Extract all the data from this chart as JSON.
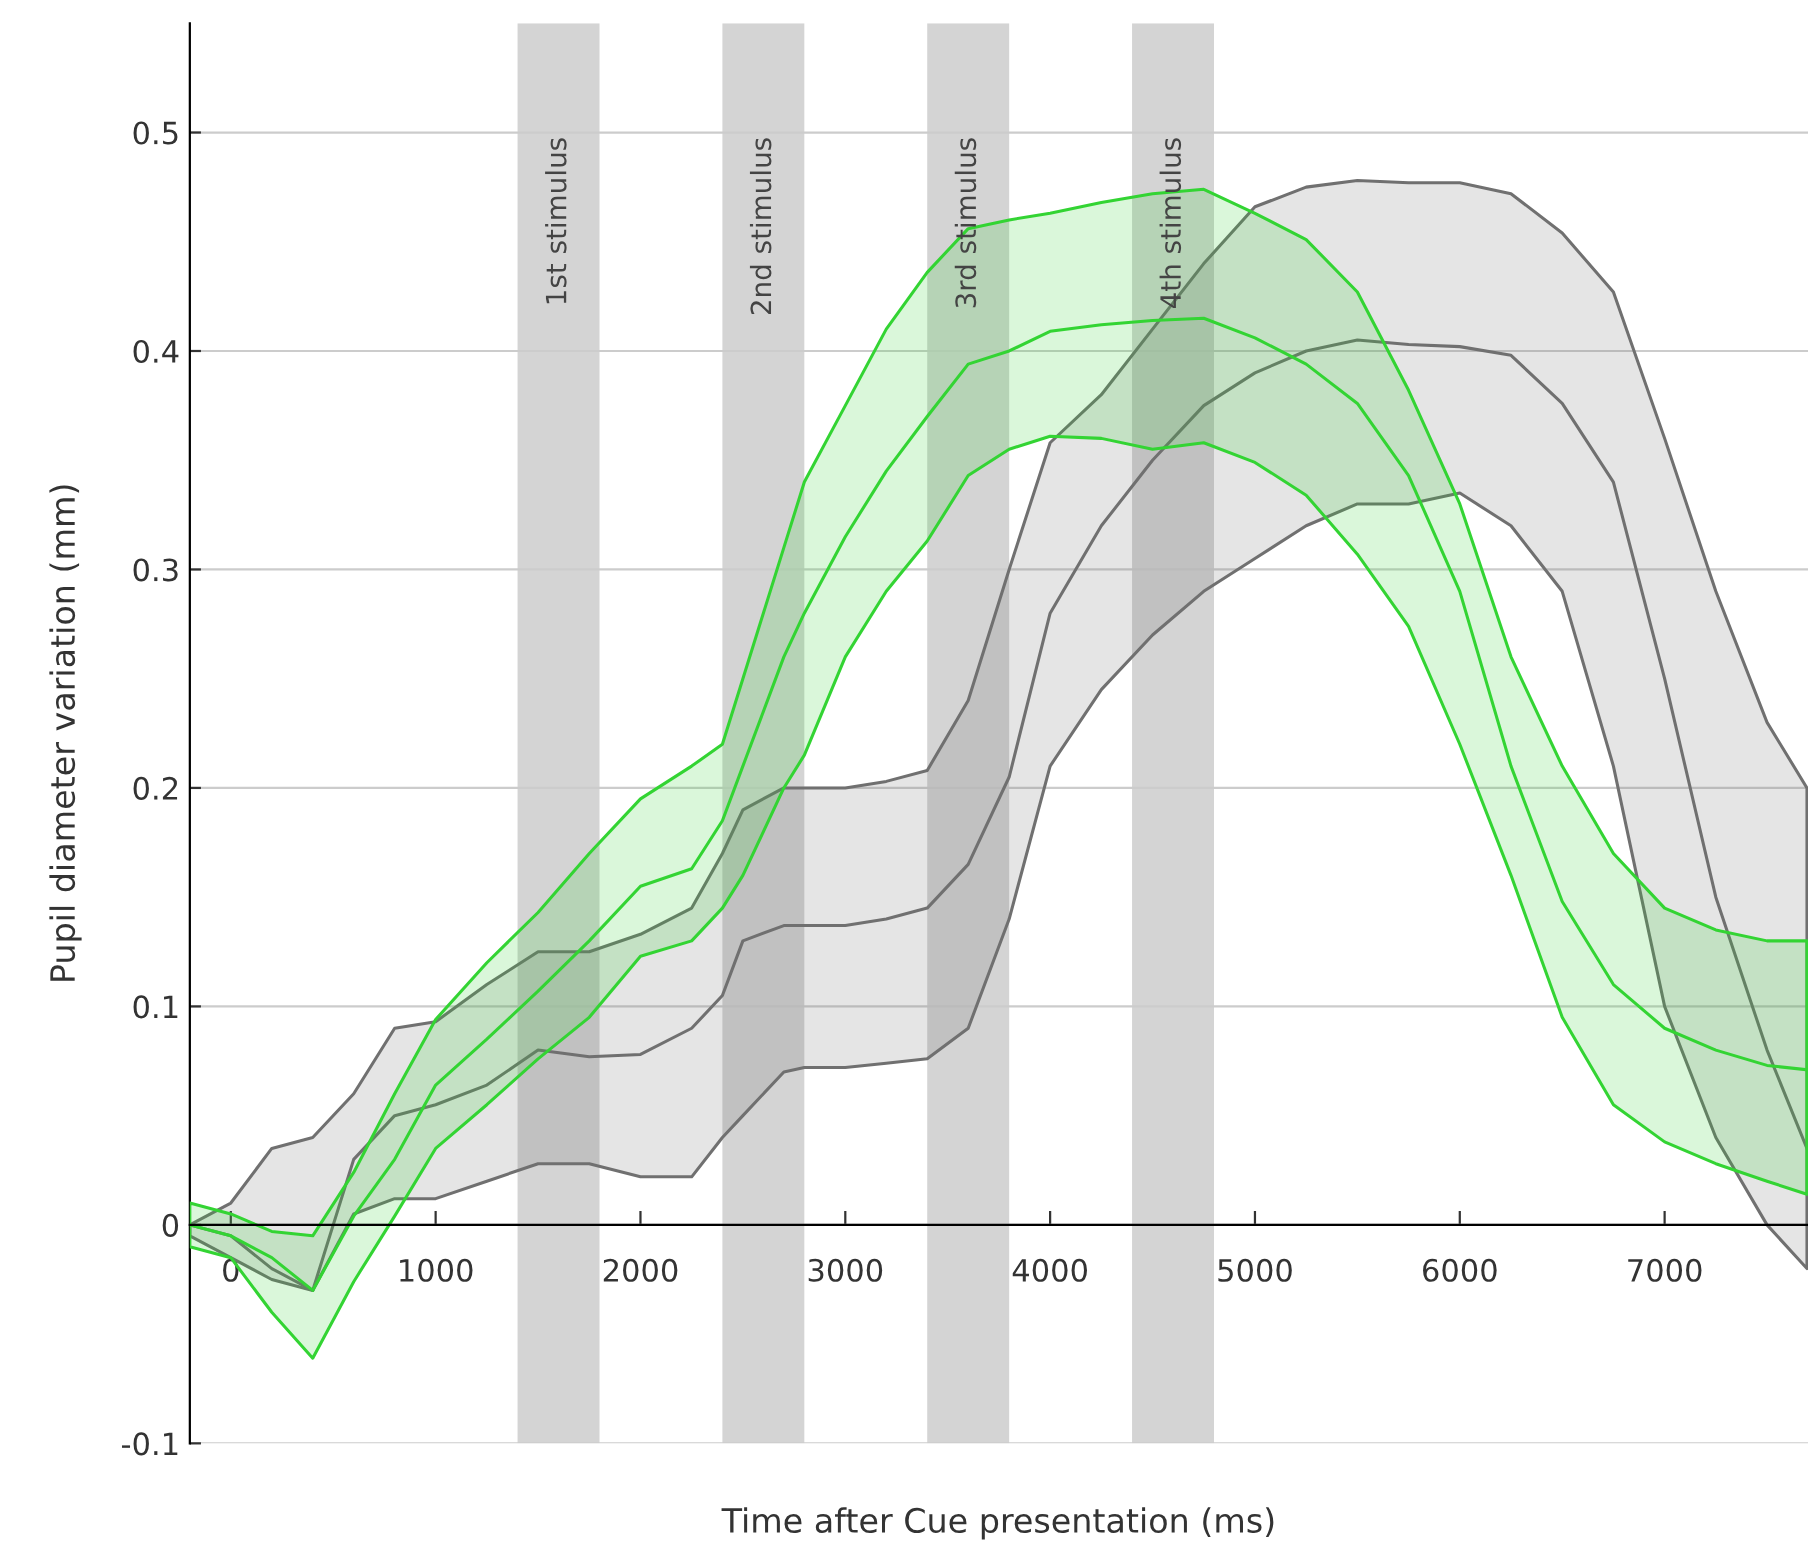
{
  "chart_data": {
    "type": "line",
    "xlabel": "Time after Cue presentation (ms)",
    "ylabel": "Pupil diameter variation (mm)",
    "xlim": [
      -200,
      7700
    ],
    "ylim": [
      -0.1,
      0.55
    ],
    "xticks": [
      0,
      1000,
      2000,
      3000,
      4000,
      5000,
      6000,
      7000
    ],
    "yticks": [
      -0.1,
      0,
      0.1,
      0.2,
      0.3,
      0.4,
      0.5
    ],
    "grid": "y",
    "marker": "none",
    "line_style": "solid",
    "bands": [
      {
        "axis": "x",
        "from": 1400,
        "to": 1800,
        "label": "1st stimulus",
        "color": "#d4d4d4"
      },
      {
        "axis": "x",
        "from": 2400,
        "to": 2800,
        "label": "2nd stimulus",
        "color": "#d4d4d4"
      },
      {
        "axis": "x",
        "from": 3400,
        "to": 3800,
        "label": "3rd stimulus",
        "color": "#d4d4d4"
      },
      {
        "axis": "x",
        "from": 4400,
        "to": 4800,
        "label": "4th stimulus",
        "color": "#d4d4d4"
      }
    ],
    "x": [
      -200,
      0,
      200,
      400,
      600,
      800,
      1000,
      1250,
      1500,
      1750,
      2000,
      2250,
      2400,
      2500,
      2700,
      2800,
      3000,
      3200,
      3400,
      3600,
      3800,
      4000,
      4250,
      4500,
      4750,
      5000,
      5250,
      5500,
      5750,
      6000,
      6250,
      6500,
      6750,
      7000,
      7250,
      7500,
      7695
    ],
    "series": [
      {
        "color": "#707070",
        "values": [
          0.0,
          -0.005,
          -0.02,
          -0.03,
          0.03,
          0.05,
          0.055,
          0.064,
          0.08,
          0.077,
          0.078,
          0.09,
          0.105,
          0.13,
          0.137,
          0.137,
          0.137,
          0.14,
          0.145,
          0.165,
          0.205,
          0.28,
          0.32,
          0.35,
          0.375,
          0.39,
          0.4,
          0.405,
          0.403,
          0.402,
          0.398,
          0.376,
          0.34,
          0.25,
          0.15,
          0.08,
          0.035
        ],
        "upper": [
          0.0,
          0.01,
          0.035,
          0.04,
          0.06,
          0.09,
          0.093,
          0.11,
          0.125,
          0.125,
          0.133,
          0.145,
          0.17,
          0.19,
          0.2,
          0.2,
          0.2,
          0.203,
          0.208,
          0.24,
          0.3,
          0.358,
          0.38,
          0.41,
          0.44,
          0.466,
          0.475,
          0.478,
          0.477,
          0.477,
          0.472,
          0.454,
          0.427,
          0.36,
          0.29,
          0.23,
          0.2
        ],
        "lower": [
          -0.005,
          -0.015,
          -0.025,
          -0.03,
          0.005,
          0.012,
          0.012,
          0.02,
          0.028,
          0.028,
          0.022,
          0.022,
          0.04,
          0.05,
          0.07,
          0.072,
          0.072,
          0.074,
          0.076,
          0.09,
          0.14,
          0.21,
          0.245,
          0.27,
          0.29,
          0.305,
          0.32,
          0.33,
          0.33,
          0.335,
          0.32,
          0.29,
          0.21,
          0.1,
          0.04,
          0.0,
          -0.02
        ]
      },
      {
        "color": "#33d433",
        "values": [
          0.0,
          -0.005,
          -0.015,
          -0.03,
          0.004,
          0.03,
          0.064,
          0.085,
          0.107,
          0.13,
          0.155,
          0.163,
          0.185,
          0.21,
          0.26,
          0.28,
          0.315,
          0.345,
          0.37,
          0.394,
          0.4,
          0.409,
          0.412,
          0.414,
          0.415,
          0.406,
          0.394,
          0.376,
          0.343,
          0.29,
          0.21,
          0.148,
          0.11,
          0.09,
          0.08,
          0.073,
          0.071
        ],
        "upper": [
          0.01,
          0.005,
          -0.003,
          -0.005,
          0.024,
          0.06,
          0.094,
          0.12,
          0.143,
          0.17,
          0.195,
          0.21,
          0.22,
          0.25,
          0.31,
          0.34,
          0.375,
          0.41,
          0.436,
          0.456,
          0.46,
          0.463,
          0.468,
          0.472,
          0.474,
          0.463,
          0.451,
          0.427,
          0.382,
          0.33,
          0.26,
          0.21,
          0.17,
          0.145,
          0.135,
          0.13,
          0.13
        ],
        "lower": [
          -0.01,
          -0.015,
          -0.04,
          -0.061,
          -0.026,
          0.004,
          0.035,
          0.055,
          0.076,
          0.095,
          0.123,
          0.13,
          0.145,
          0.16,
          0.2,
          0.215,
          0.26,
          0.29,
          0.313,
          0.343,
          0.355,
          0.361,
          0.36,
          0.355,
          0.358,
          0.349,
          0.334,
          0.307,
          0.274,
          0.22,
          0.16,
          0.095,
          0.055,
          0.038,
          0.028,
          0.02,
          0.014
        ]
      }
    ]
  }
}
